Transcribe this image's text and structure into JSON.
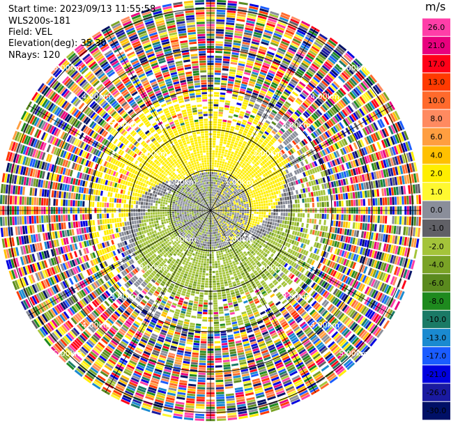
{
  "header": {
    "start_time": "Start time: 2023/09/13 11:55:58",
    "radar": "WLS200s-181",
    "field": "Field: VEL",
    "elevation": "Elevation(deg): 35.30",
    "nrays": "NRays: 120"
  },
  "colorbar": {
    "title": "m/s",
    "ticks": [
      "26.0",
      "21.0",
      "17.0",
      "13.0",
      "10.0",
      "8.0",
      "6.0",
      "4.0",
      "2.0",
      "1.0",
      "0.0",
      "-1.0",
      "-2.0",
      "-4.0",
      "-6.0",
      "-8.0",
      "-10.0",
      "-13.0",
      "-17.0",
      "-21.0",
      "-26.0",
      "-30.0"
    ],
    "colors": [
      "#ff3ea8",
      "#e8007e",
      "#ff0018",
      "#ff3a00",
      "#ff6a2c",
      "#ff8a60",
      "#ff9e40",
      "#ffc000",
      "#ffee00",
      "#fff830",
      "#8a8e9a",
      "#606066",
      "#a4c43a",
      "#7aa326",
      "#5a8a1e",
      "#1e8a1e",
      "#1a7a66",
      "#1a8ad0",
      "#1a5cff",
      "#0000e0",
      "#1a1aa0",
      "#001066"
    ]
  },
  "chart_data": {
    "type": "ppi",
    "field": "VEL",
    "units": "m/s",
    "nrays": 120,
    "range_ring_labels_km": [
      "1.00km",
      "2.00km",
      "3.00km",
      "4.00km",
      "5.00km"
    ],
    "range_rings_km": [
      1,
      2,
      3,
      4,
      5
    ],
    "max_range_km": 5.2,
    "velocity_scale": [
      -30.0,
      26.0
    ],
    "regions": [
      {
        "range_km": [
          0,
          1.0
        ],
        "description_values_ms": [
          -2.0,
          0.0,
          1.0
        ]
      },
      {
        "range_km": [
          1.0,
          2.2
        ],
        "east_ms": 2.0,
        "west_ms": -2.0
      },
      {
        "range_km": [
          2.2,
          3.0
        ],
        "east_ms": 2.0,
        "west_ms": -2.0,
        "noise_fraction": 0.35
      },
      {
        "range_km": [
          3.0,
          5.2
        ],
        "noise_fraction": 0.95
      }
    ]
  }
}
